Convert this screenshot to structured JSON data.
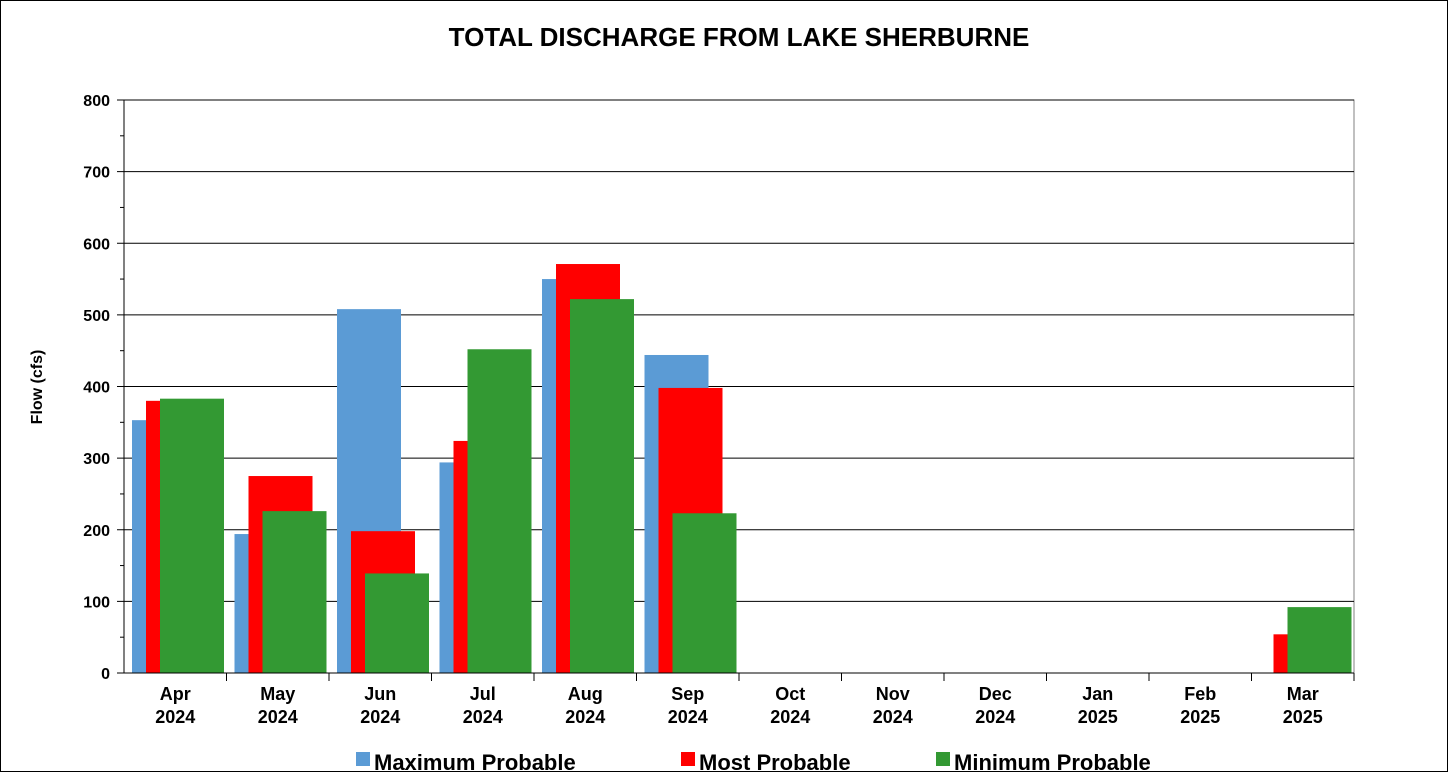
{
  "chart_data": {
    "type": "bar",
    "title": "TOTAL DISCHARGE FROM LAKE SHERBURNE",
    "y_label": "Flow (cfs)",
    "categories": [
      "Apr 2024",
      "May 2024",
      "Jun 2024",
      "Jul 2024",
      "Aug 2024",
      "Sep 2024",
      "Oct 2024",
      "Nov 2024",
      "Dec 2024",
      "Jan 2025",
      "Feb 2025",
      "Mar 2025"
    ],
    "series": [
      {
        "name": "Maximum Probable",
        "color": "#5b9bd5",
        "values": [
          353,
          194,
          508,
          294,
          550,
          444,
          0,
          0,
          0,
          0,
          0,
          0
        ]
      },
      {
        "name": "Most Probable",
        "color": "#ff0000",
        "values": [
          380,
          275,
          198,
          324,
          571,
          398,
          0,
          0,
          0,
          0,
          0,
          54
        ]
      },
      {
        "name": "Minimum Probable",
        "color": "#339933",
        "values": [
          383,
          226,
          139,
          452,
          522,
          223,
          0,
          0,
          0,
          0,
          0,
          92
        ]
      }
    ],
    "ylim": [
      0,
      800
    ],
    "yticks": [
      0,
      100,
      200,
      300,
      400,
      500,
      600,
      700,
      800
    ],
    "grid": true
  }
}
